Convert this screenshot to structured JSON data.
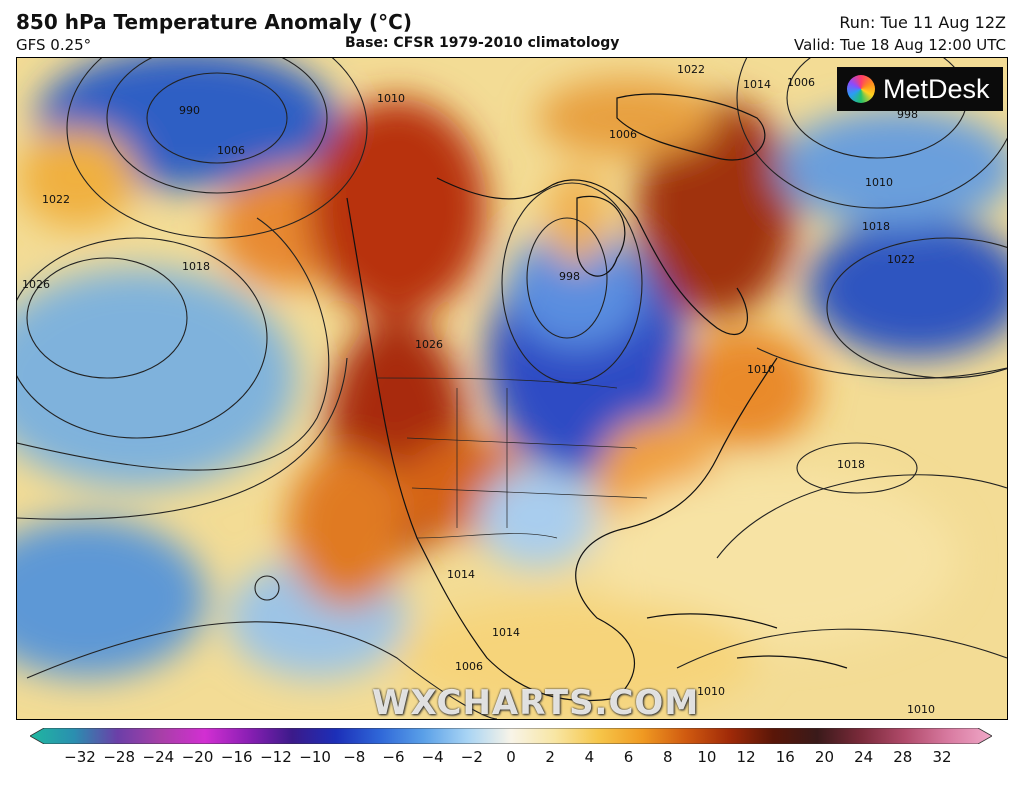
{
  "header": {
    "title": "850 hPa Temperature Anomaly (°C)",
    "model": "GFS 0.25°",
    "base": "Base: CFSR 1979-2010 climatology",
    "run": "Run: Tue 11 Aug 12Z",
    "valid": "Valid: Tue 18 Aug 12:00 UTC"
  },
  "branding": {
    "logo_text": "MetDesk",
    "watermark": "WXCHARTS.COM"
  },
  "isobars": [
    "990",
    "998",
    "1006",
    "1010",
    "1014",
    "1018",
    "1022",
    "1026",
    "1006",
    "1010",
    "1010",
    "1014",
    "1018",
    "1022",
    "1018",
    "1026",
    "1022",
    "1010",
    "1010",
    "1006",
    "1014",
    "1006",
    "998"
  ],
  "colorbar": {
    "ticks": [
      "−32",
      "−28",
      "−24",
      "−20",
      "−16",
      "−12",
      "−10",
      "−8",
      "−6",
      "−4",
      "−2",
      "0",
      "2",
      "4",
      "6",
      "8",
      "10",
      "12",
      "16",
      "20",
      "24",
      "28",
      "32"
    ],
    "colors": [
      "#1fb8a0",
      "#2a8fb0",
      "#6b3fa8",
      "#a83fa8",
      "#d22fd2",
      "#8a1fb4",
      "#3b1a8a",
      "#1c2fb8",
      "#2f67d8",
      "#5aa0e8",
      "#a8d4f4",
      "#f8f4e8",
      "#f8e6a4",
      "#f6c64a",
      "#f09a22",
      "#d05a10",
      "#a02a08",
      "#5a1608",
      "#3a1a1a",
      "#7a2a3a",
      "#b04a6a",
      "#d87aa0",
      "#f0a8c8"
    ]
  }
}
